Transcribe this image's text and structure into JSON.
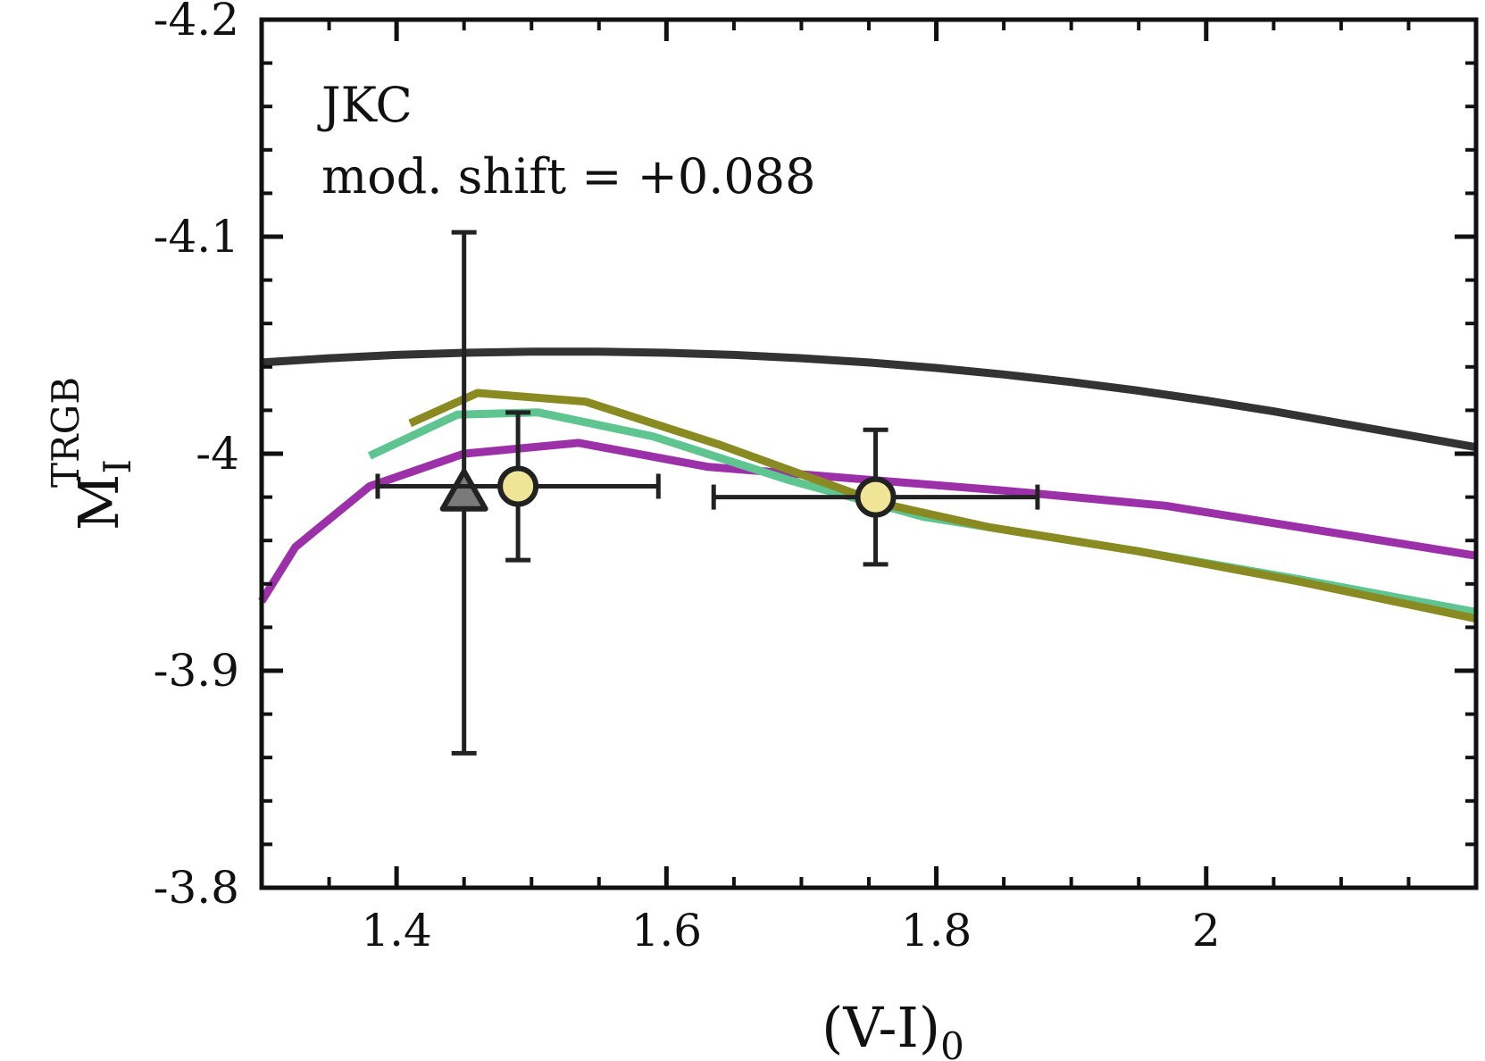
{
  "chart_data": {
    "type": "line",
    "xlabel": {
      "main": "(V-I)",
      "sub": "0"
    },
    "ylabel": {
      "main": "M",
      "sub": "I",
      "sup": "TRGB"
    },
    "xlim": [
      1.3,
      2.2
    ],
    "ylim": [
      -4.2,
      -3.8
    ],
    "y_inverted": true,
    "x_ticks": [
      1.4,
      1.6,
      1.8,
      2.0
    ],
    "x_tick_labels": [
      "1.4",
      "1.6",
      "1.8",
      "2"
    ],
    "y_ticks": [
      -4.2,
      -4.1,
      -4.0,
      -3.9,
      -3.8
    ],
    "y_tick_labels": [
      "-4.2",
      "-4.1",
      "-4",
      "-3.9",
      "-3.8"
    ],
    "grid": false,
    "annotations": [
      "JKC",
      "mod. shift = +0.088"
    ],
    "series": [
      {
        "color": "#333333",
        "x": [
          1.3,
          1.35,
          1.4,
          1.45,
          1.5,
          1.55,
          1.6,
          1.65,
          1.7,
          1.75,
          1.8,
          1.85,
          1.9,
          1.95,
          2.0,
          2.05,
          2.1,
          2.15,
          2.2
        ],
        "y": [
          -4.042,
          -4.044,
          -4.0455,
          -4.0465,
          -4.047,
          -4.047,
          -4.0465,
          -4.0455,
          -4.044,
          -4.042,
          -4.0395,
          -4.0365,
          -4.033,
          -4.029,
          -4.0245,
          -4.0195,
          -4.014,
          -4.0085,
          -4.003
        ]
      },
      {
        "color": "#9b30a8",
        "x": [
          1.3,
          1.325,
          1.38,
          1.45,
          1.535,
          1.63,
          1.75,
          1.85,
          1.97,
          2.2
        ],
        "y": [
          -3.932,
          -3.957,
          -3.985,
          -4.0,
          -4.005,
          -3.994,
          -3.988,
          -3.983,
          -3.976,
          -3.953
        ]
      },
      {
        "color": "#5ec490",
        "x": [
          1.38,
          1.445,
          1.505,
          1.59,
          1.69,
          1.79,
          1.84,
          1.95,
          2.07,
          2.2
        ],
        "y": [
          -3.999,
          -4.018,
          -4.019,
          -4.008,
          -3.988,
          -3.971,
          -3.966,
          -3.955,
          -3.942,
          -3.927
        ]
      },
      {
        "color": "#8a8a22",
        "x": [
          1.41,
          1.46,
          1.54,
          1.64,
          1.76,
          1.84,
          1.95,
          2.07,
          2.2
        ],
        "y": [
          -4.014,
          -4.028,
          -4.024,
          -4.004,
          -3.977,
          -3.966,
          -3.955,
          -3.941,
          -3.924
        ]
      }
    ],
    "points": [
      {
        "marker": "triangle",
        "face_color": "#7a7a7a",
        "x": 1.45,
        "y": -3.982,
        "xerr": 0.0,
        "yerr": 0.12
      },
      {
        "marker": "circle",
        "face_color": "#f0e596",
        "x": 1.49,
        "y": -3.985,
        "xerr": 0.104,
        "yerr": 0.034
      },
      {
        "marker": "circle",
        "face_color": "#f0e596",
        "x": 1.755,
        "y": -3.98,
        "xerr": 0.12,
        "yerr": 0.031
      }
    ]
  }
}
